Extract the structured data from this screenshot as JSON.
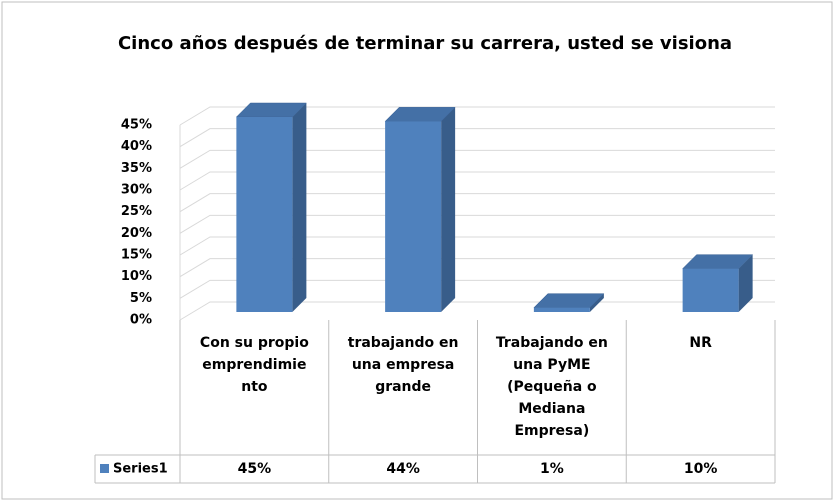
{
  "chart_data": {
    "type": "bar3d",
    "title": "Cinco años después de terminar su carrera, usted se visiona",
    "categories": [
      "Con su propio emprendimiento",
      "trabajando en una empresa grande",
      "Trabajando en una PyME (Pequeña o Mediana Empresa)",
      "NR"
    ],
    "series": [
      {
        "name": "Series1",
        "color": "#4f81bd",
        "values": [
          45,
          44,
          1,
          10
        ],
        "value_labels": [
          "45%",
          "44%",
          "1%",
          "10%"
        ]
      }
    ],
    "ylim": [
      0,
      45
    ],
    "yticks": [
      {
        "value": 0,
        "label": "0%"
      },
      {
        "value": 5,
        "label": "5%"
      },
      {
        "value": 10,
        "label": "10%"
      },
      {
        "value": 15,
        "label": "15%"
      },
      {
        "value": 20,
        "label": "20%"
      },
      {
        "value": 25,
        "label": "25%"
      },
      {
        "value": 30,
        "label": "30%"
      },
      {
        "value": 35,
        "label": "35%"
      },
      {
        "value": 40,
        "label": "40%"
      },
      {
        "value": 45,
        "label": "45%"
      }
    ],
    "grid": true
  }
}
